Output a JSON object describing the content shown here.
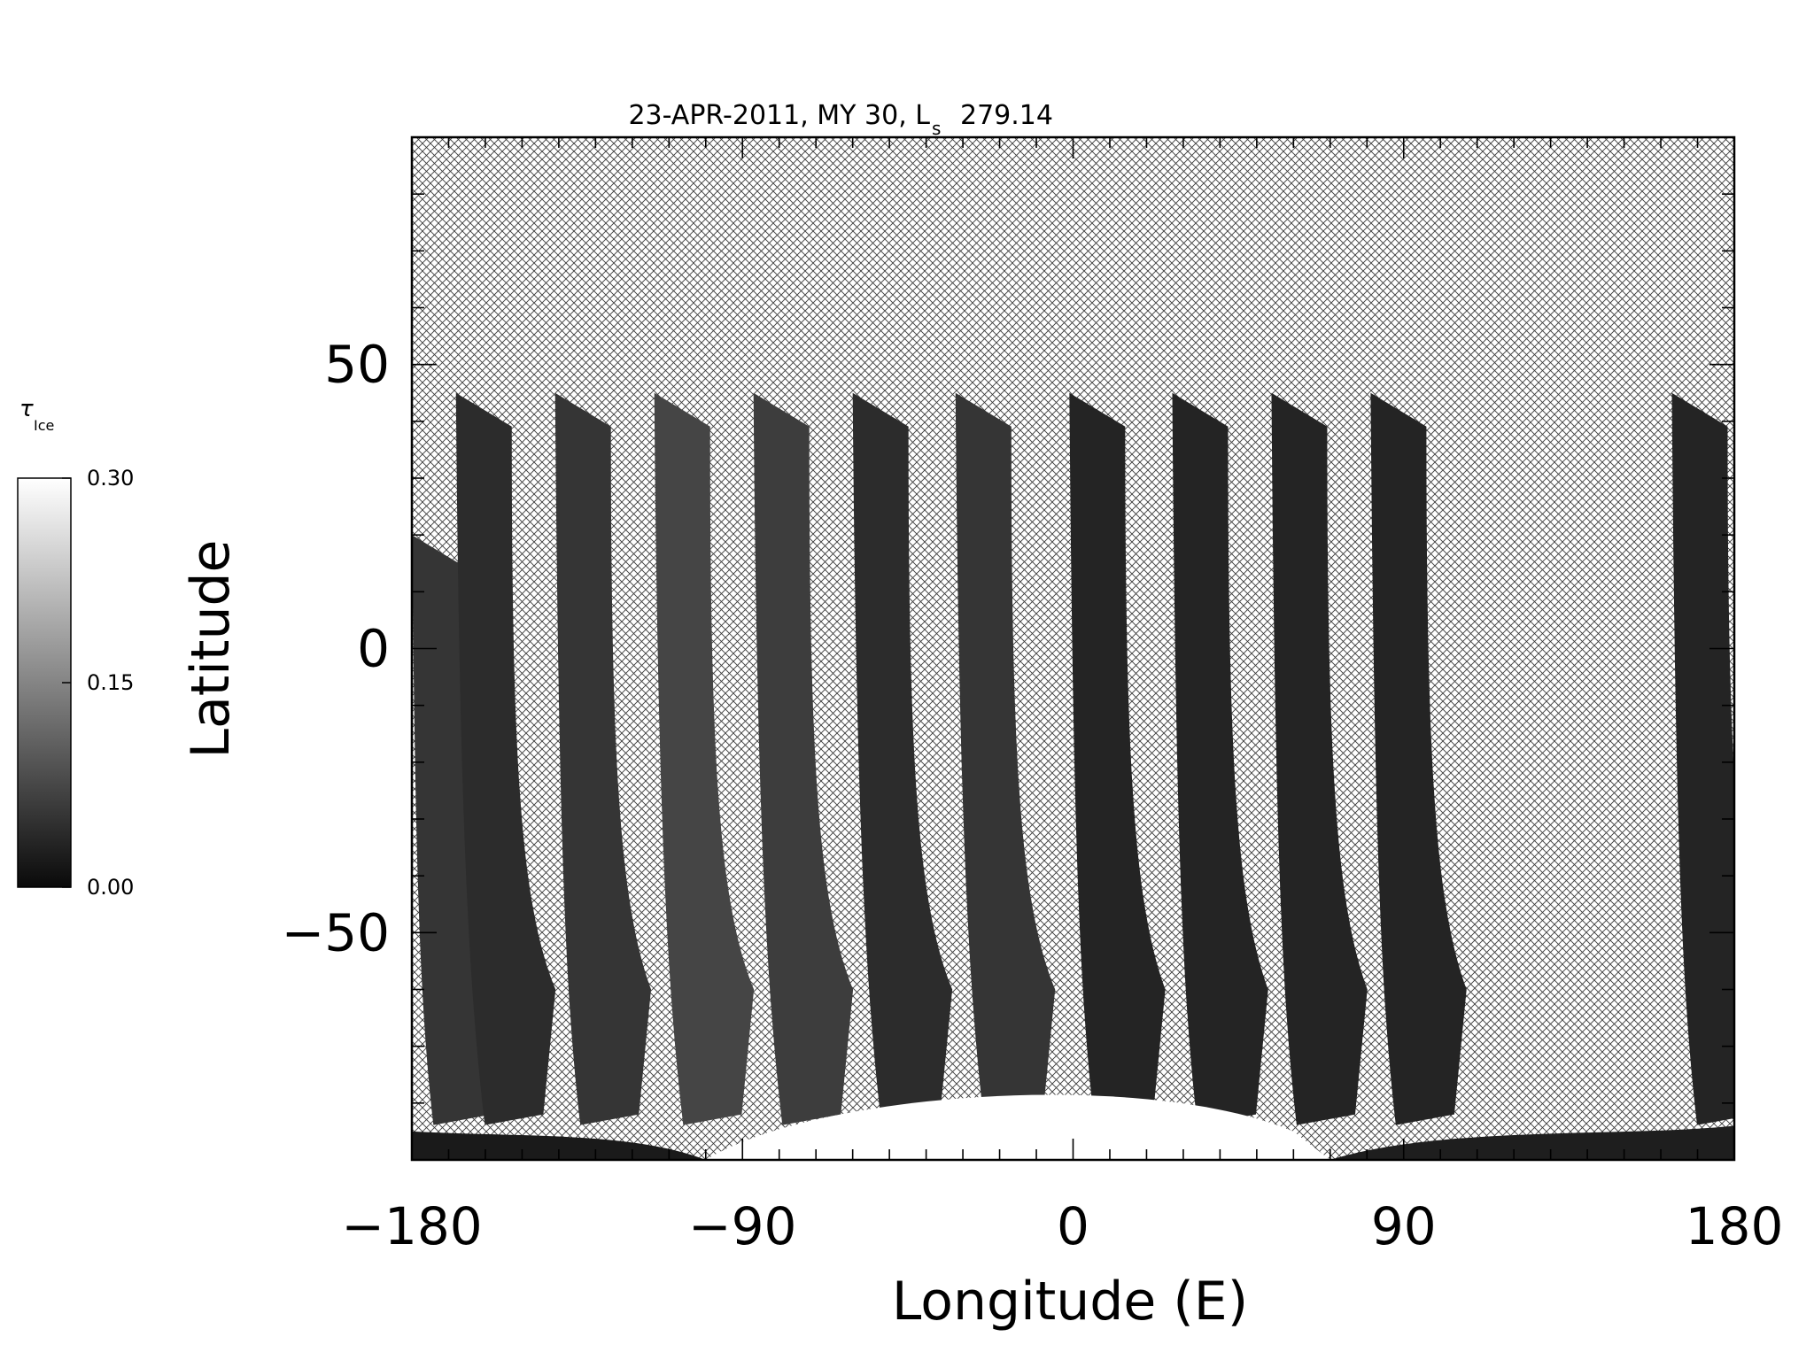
{
  "chart_data": {
    "type": "heatmap",
    "title": "23-APR-2011, MY 30,  L",
    "title_sub": "s",
    "title_value": "279.14",
    "xlabel": "Longitude (E)",
    "ylabel": "Latitude",
    "xlim": [
      -180,
      180
    ],
    "ylim": [
      -90,
      90
    ],
    "xticks": [
      -180,
      -90,
      0,
      90,
      180
    ],
    "xtick_labels": [
      "−180",
      "−90",
      "0",
      "90",
      "180"
    ],
    "yticks": [
      -50,
      0,
      50
    ],
    "ytick_labels": [
      "−50",
      "0",
      "50"
    ],
    "grid": false,
    "colormap": "grayscale",
    "no_data_pattern": "crosshatch",
    "colorbar": {
      "label": "τ",
      "label_sub": "Ice",
      "min": 0.0,
      "max": 0.3,
      "ticks": [
        0.0,
        0.15,
        0.3
      ],
      "tick_labels": [
        "0.00",
        "0.15",
        "0.30"
      ]
    },
    "swaths": [
      {
        "lon_start": -180,
        "lon_north": -180,
        "lat_top": 20,
        "lon_bottom": -164,
        "bright": 0.05
      },
      {
        "lon_start": -168,
        "lon_north": -168,
        "lat_top": 45,
        "lon_bottom": -150,
        "bright": 0.04
      },
      {
        "lon_start": -141,
        "lon_north": -141,
        "lat_top": 45,
        "lon_bottom": -124,
        "bright": 0.05
      },
      {
        "lon_start": -114,
        "lon_north": -114,
        "lat_top": 45,
        "lon_bottom": -96,
        "bright": 0.07
      },
      {
        "lon_start": -87,
        "lon_north": -87,
        "lat_top": 45,
        "lon_bottom": -69,
        "bright": 0.06
      },
      {
        "lon_start": -60,
        "lon_north": -60,
        "lat_top": 45,
        "lon_bottom": -42,
        "bright": 0.04
      },
      {
        "lon_start": -32,
        "lon_north": -32,
        "lat_top": 45,
        "lon_bottom": -14,
        "bright": 0.05
      },
      {
        "lon_start": -1,
        "lon_north": -1,
        "lat_top": 45,
        "lon_bottom": 16,
        "bright": 0.03
      },
      {
        "lon_start": 27,
        "lon_north": 27,
        "lat_top": 45,
        "lon_bottom": 44,
        "bright": 0.03
      },
      {
        "lon_start": 54,
        "lon_north": 54,
        "lat_top": 45,
        "lon_bottom": 71,
        "bright": 0.03
      },
      {
        "lon_start": 81,
        "lon_north": 81,
        "lat_top": 45,
        "lon_bottom": 98,
        "bright": 0.03
      },
      {
        "lon_start": 163,
        "lon_north": 163,
        "lat_top": 45,
        "lon_bottom": 180,
        "bright": 0.03
      }
    ],
    "south_cap": {
      "lon_min": -100,
      "lon_max": 60,
      "lat_top": -76,
      "value": 0.3
    }
  }
}
